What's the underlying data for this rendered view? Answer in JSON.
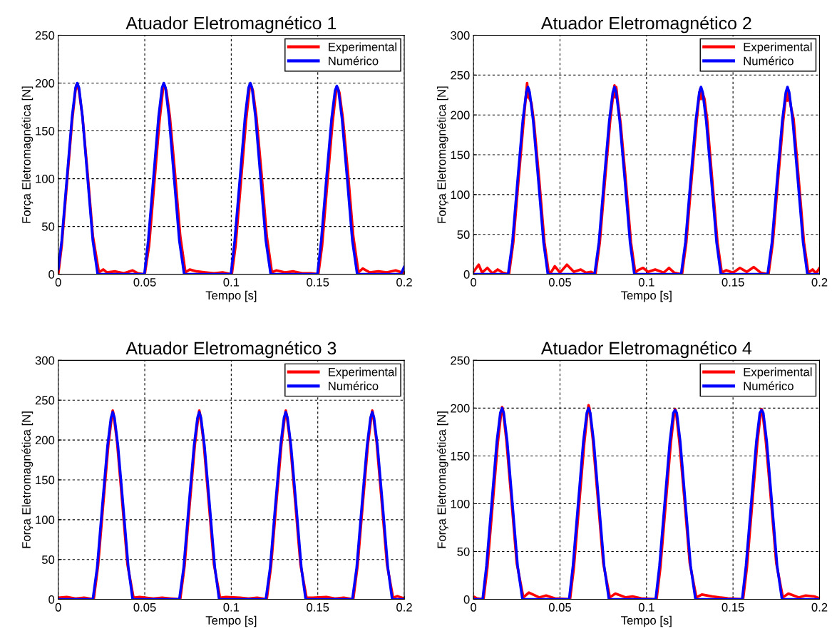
{
  "chart_data": [
    {
      "type": "line",
      "title": "Atuador Eletromagnético 1",
      "xlabel": "Tempo [s]",
      "ylabel": "Força Eletromagnética [N]",
      "xlim": [
        0,
        0.2
      ],
      "ylim": [
        0,
        250
      ],
      "xticks": [
        0,
        0.05,
        0.1,
        0.15,
        0.2
      ],
      "yticks": [
        0,
        50,
        100,
        150,
        200,
        250
      ],
      "grid": true,
      "legend": "top right",
      "line_style": "solid",
      "marker": "none",
      "series": [
        {
          "name": "Experimental",
          "color": "#ff0000",
          "x": [
            0,
            0.002,
            0.005,
            0.008,
            0.01,
            0.0105,
            0.011,
            0.012,
            0.014,
            0.017,
            0.02,
            0.0235,
            0.026,
            0.028,
            0.033,
            0.038,
            0.043,
            0.046,
            0.05,
            0.0525,
            0.0555,
            0.0585,
            0.0605,
            0.061,
            0.0615,
            0.0625,
            0.0645,
            0.0675,
            0.0705,
            0.0735,
            0.076,
            0.08,
            0.085,
            0.09,
            0.095,
            0.1003,
            0.1025,
            0.1055,
            0.1085,
            0.1105,
            0.111,
            0.1115,
            0.1125,
            0.1145,
            0.1175,
            0.1205,
            0.1235,
            0.126,
            0.131,
            0.136,
            0.141,
            0.146,
            0.1503,
            0.1525,
            0.1555,
            0.1585,
            0.1605,
            0.161,
            0.1615,
            0.1625,
            0.1645,
            0.1675,
            0.1705,
            0.1735,
            0.176,
            0.18,
            0.185,
            0.19,
            0.195,
            0.2
          ],
          "values": [
            0,
            30,
            95,
            160,
            193,
            198,
            197,
            192,
            165,
            105,
            40,
            2,
            5,
            2,
            3,
            1,
            4,
            1,
            0,
            30,
            95,
            160,
            193,
            199,
            197,
            192,
            165,
            105,
            40,
            2,
            5,
            3,
            2,
            1,
            2,
            0,
            30,
            95,
            160,
            193,
            199,
            197,
            192,
            165,
            105,
            40,
            2,
            4,
            2,
            3,
            1,
            1,
            0,
            30,
            95,
            158,
            190,
            196,
            195,
            190,
            163,
            105,
            40,
            2,
            6,
            2,
            3,
            2,
            4,
            1
          ]
        },
        {
          "name": "Numérico",
          "color": "#0000ff",
          "x": [
            0,
            0.002,
            0.005,
            0.008,
            0.01,
            0.011,
            0.012,
            0.014,
            0.017,
            0.02,
            0.0228,
            0.0498,
            0.052,
            0.055,
            0.058,
            0.06,
            0.061,
            0.062,
            0.064,
            0.067,
            0.07,
            0.0728,
            0.0998,
            0.102,
            0.105,
            0.108,
            0.11,
            0.111,
            0.112,
            0.114,
            0.117,
            0.12,
            0.1228,
            0.1498,
            0.152,
            0.155,
            0.158,
            0.16,
            0.161,
            0.162,
            0.164,
            0.167,
            0.17,
            0.1728,
            0.198,
            0.2
          ],
          "values": [
            5,
            35,
            100,
            165,
            195,
            200,
            195,
            165,
            100,
            35,
            0,
            0,
            35,
            100,
            165,
            195,
            200,
            195,
            165,
            100,
            35,
            0,
            0,
            35,
            100,
            165,
            195,
            200,
            195,
            165,
            100,
            35,
            0,
            0,
            35,
            100,
            163,
            192,
            197,
            192,
            163,
            100,
            35,
            0,
            0,
            8
          ]
        }
      ]
    },
    {
      "type": "line",
      "title": "Atuador Eletromagnético 2",
      "xlabel": "Tempo [s]",
      "ylabel": "Força Eletromagnética [N]",
      "xlim": [
        0,
        0.2
      ],
      "ylim": [
        0,
        300
      ],
      "xticks": [
        0,
        0.05,
        0.1,
        0.15,
        0.2
      ],
      "yticks": [
        0,
        50,
        100,
        150,
        200,
        250,
        300
      ],
      "grid": true,
      "legend": "top right",
      "line_style": "solid",
      "marker": "none",
      "series": [
        {
          "name": "Experimental",
          "color": "#ff0000",
          "x": [
            0,
            0.003,
            0.005,
            0.008,
            0.011,
            0.014,
            0.017,
            0.0205,
            0.023,
            0.026,
            0.029,
            0.031,
            0.0315,
            0.032,
            0.0325,
            0.0335,
            0.035,
            0.038,
            0.041,
            0.0435,
            0.045,
            0.047,
            0.05,
            0.054,
            0.058,
            0.062,
            0.065,
            0.068,
            0.0705,
            0.073,
            0.076,
            0.079,
            0.081,
            0.0815,
            0.082,
            0.0825,
            0.0835,
            0.085,
            0.088,
            0.091,
            0.0935,
            0.095,
            0.098,
            0.101,
            0.105,
            0.11,
            0.113,
            0.116,
            0.1205,
            0.123,
            0.126,
            0.129,
            0.1305,
            0.131,
            0.1315,
            0.132,
            0.1335,
            0.135,
            0.138,
            0.141,
            0.1435,
            0.146,
            0.15,
            0.154,
            0.158,
            0.162,
            0.166,
            0.1705,
            0.173,
            0.176,
            0.179,
            0.1805,
            0.181,
            0.1815,
            0.182,
            0.1835,
            0.185,
            0.188,
            0.191,
            0.1935,
            0.196,
            0.198,
            0.2
          ],
          "values": [
            3,
            12,
            2,
            8,
            1,
            6,
            2,
            0,
            40,
            118,
            193,
            240,
            222,
            232,
            220,
            215,
            190,
            118,
            40,
            2,
            3,
            10,
            2,
            12,
            3,
            6,
            2,
            3,
            0,
            40,
            118,
            193,
            230,
            237,
            222,
            235,
            215,
            190,
            118,
            40,
            2,
            5,
            8,
            3,
            6,
            2,
            8,
            2,
            0,
            40,
            118,
            193,
            225,
            232,
            220,
            230,
            220,
            195,
            118,
            40,
            2,
            5,
            2,
            8,
            3,
            9,
            2,
            0,
            40,
            118,
            193,
            222,
            230,
            218,
            228,
            210,
            195,
            118,
            40,
            2,
            6,
            1,
            8
          ]
        },
        {
          "name": "Numérico",
          "color": "#0000ff",
          "x": [
            0,
            0.02,
            0.0225,
            0.0255,
            0.0285,
            0.0305,
            0.0315,
            0.0325,
            0.0345,
            0.0375,
            0.0405,
            0.043,
            0.07,
            0.0725,
            0.0755,
            0.0785,
            0.0805,
            0.0815,
            0.0825,
            0.0845,
            0.0875,
            0.0905,
            0.093,
            0.12,
            0.1225,
            0.1255,
            0.1285,
            0.1305,
            0.1315,
            0.1325,
            0.1345,
            0.1375,
            0.1405,
            0.143,
            0.17,
            0.1725,
            0.1755,
            0.1785,
            0.1805,
            0.1815,
            0.1825,
            0.1845,
            0.1875,
            0.1905,
            0.193,
            0.2
          ],
          "values": [
            0,
            0,
            40,
            118,
            193,
            228,
            235,
            228,
            193,
            118,
            40,
            0,
            0,
            40,
            118,
            193,
            228,
            235,
            228,
            193,
            118,
            40,
            0,
            0,
            40,
            118,
            193,
            228,
            235,
            228,
            193,
            118,
            40,
            0,
            0,
            40,
            118,
            193,
            228,
            235,
            228,
            193,
            118,
            40,
            0,
            0
          ]
        }
      ]
    },
    {
      "type": "line",
      "title": "Atuador Eletromagnético 3",
      "xlabel": "Tempo [s]",
      "ylabel": "Força Eletromagnética [N]",
      "xlim": [
        0,
        0.2
      ],
      "ylim": [
        0,
        300
      ],
      "xticks": [
        0,
        0.05,
        0.1,
        0.15,
        0.2
      ],
      "yticks": [
        0,
        50,
        100,
        150,
        200,
        250,
        300
      ],
      "grid": true,
      "legend": "top right",
      "line_style": "solid",
      "marker": "none",
      "series": [
        {
          "name": "Experimental",
          "color": "#ff0000",
          "x": [
            0,
            0.005,
            0.01,
            0.015,
            0.0205,
            0.023,
            0.026,
            0.029,
            0.031,
            0.0315,
            0.032,
            0.034,
            0.037,
            0.04,
            0.0435,
            0.047,
            0.055,
            0.06,
            0.065,
            0.0705,
            0.073,
            0.076,
            0.079,
            0.081,
            0.0815,
            0.082,
            0.084,
            0.087,
            0.09,
            0.0935,
            0.097,
            0.105,
            0.11,
            0.115,
            0.1205,
            0.123,
            0.126,
            0.129,
            0.131,
            0.1315,
            0.132,
            0.134,
            0.137,
            0.14,
            0.1435,
            0.147,
            0.155,
            0.16,
            0.165,
            0.1705,
            0.173,
            0.176,
            0.179,
            0.181,
            0.1815,
            0.182,
            0.184,
            0.187,
            0.19,
            0.1935,
            0.196,
            0.2
          ],
          "values": [
            2,
            3,
            1,
            2,
            0,
            42,
            120,
            195,
            230,
            237,
            232,
            198,
            122,
            44,
            2,
            3,
            1,
            2,
            1,
            0,
            42,
            120,
            195,
            230,
            237,
            232,
            198,
            122,
            44,
            2,
            3,
            2,
            1,
            2,
            0,
            42,
            120,
            195,
            230,
            237,
            232,
            198,
            122,
            44,
            2,
            2,
            3,
            1,
            2,
            0,
            42,
            120,
            195,
            230,
            237,
            232,
            198,
            122,
            44,
            2,
            4,
            1
          ]
        },
        {
          "name": "Numérico",
          "color": "#0000ff",
          "x": [
            0,
            0.02,
            0.0225,
            0.0255,
            0.0285,
            0.0305,
            0.0315,
            0.0325,
            0.0345,
            0.0375,
            0.0405,
            0.043,
            0.07,
            0.0725,
            0.0755,
            0.0785,
            0.0805,
            0.0815,
            0.0825,
            0.0845,
            0.0875,
            0.0905,
            0.093,
            0.12,
            0.1225,
            0.1255,
            0.1285,
            0.1305,
            0.1315,
            0.1325,
            0.1345,
            0.1375,
            0.1405,
            0.143,
            0.17,
            0.1725,
            0.1755,
            0.1785,
            0.1805,
            0.1815,
            0.1825,
            0.1845,
            0.1875,
            0.1905,
            0.193,
            0.2
          ],
          "values": [
            0,
            0,
            40,
            118,
            193,
            228,
            235,
            228,
            193,
            118,
            40,
            0,
            0,
            40,
            118,
            193,
            228,
            235,
            228,
            193,
            118,
            40,
            0,
            0,
            40,
            118,
            193,
            228,
            235,
            228,
            193,
            118,
            40,
            0,
            0,
            40,
            118,
            193,
            228,
            235,
            228,
            193,
            118,
            40,
            0,
            0
          ]
        }
      ]
    },
    {
      "type": "line",
      "title": "Atuador Eletromagnético 4",
      "xlabel": "Tempo [s]",
      "ylabel": "Força Eletromagnética [N]",
      "xlim": [
        0,
        0.2
      ],
      "ylim": [
        0,
        250
      ],
      "xticks": [
        0,
        0.05,
        0.1,
        0.15,
        0.2
      ],
      "yticks": [
        0,
        50,
        100,
        150,
        200,
        250
      ],
      "grid": true,
      "legend": "top right",
      "line_style": "solid",
      "marker": "none",
      "series": [
        {
          "name": "Experimental",
          "color": "#ff0000",
          "x": [
            0,
            0.002,
            0.0058,
            0.008,
            0.011,
            0.014,
            0.016,
            0.0165,
            0.017,
            0.019,
            0.022,
            0.025,
            0.0288,
            0.032,
            0.038,
            0.042,
            0.047,
            0.0558,
            0.058,
            0.061,
            0.064,
            0.066,
            0.0665,
            0.067,
            0.069,
            0.072,
            0.075,
            0.0788,
            0.082,
            0.088,
            0.092,
            0.097,
            0.1058,
            0.108,
            0.111,
            0.114,
            0.116,
            0.1165,
            0.117,
            0.119,
            0.122,
            0.125,
            0.1288,
            0.132,
            0.138,
            0.142,
            0.147,
            0.1558,
            0.158,
            0.161,
            0.164,
            0.166,
            0.1665,
            0.167,
            0.169,
            0.172,
            0.175,
            0.1788,
            0.182,
            0.188,
            0.192,
            0.197,
            0.2
          ],
          "values": [
            3,
            1,
            0,
            33,
            98,
            163,
            195,
            201,
            199,
            167,
            103,
            38,
            2,
            7,
            2,
            4,
            1,
            0,
            33,
            98,
            163,
            197,
            203,
            200,
            167,
            103,
            38,
            2,
            6,
            2,
            3,
            1,
            0,
            33,
            98,
            163,
            195,
            199,
            197,
            165,
            103,
            38,
            2,
            5,
            3,
            2,
            1,
            0,
            33,
            98,
            163,
            195,
            199,
            197,
            165,
            103,
            38,
            2,
            6,
            2,
            4,
            3,
            1
          ]
        },
        {
          "name": "Numérico",
          "color": "#0000ff",
          "x": [
            0,
            0.0053,
            0.0075,
            0.0105,
            0.0135,
            0.0155,
            0.0165,
            0.0175,
            0.0195,
            0.0225,
            0.0255,
            0.0283,
            0.0553,
            0.0575,
            0.0605,
            0.0635,
            0.0655,
            0.0665,
            0.0675,
            0.0695,
            0.0725,
            0.0755,
            0.0783,
            0.1053,
            0.1075,
            0.1105,
            0.1135,
            0.1155,
            0.1165,
            0.1175,
            0.1195,
            0.1225,
            0.1255,
            0.1283,
            0.1553,
            0.1575,
            0.1605,
            0.1635,
            0.1655,
            0.1665,
            0.1675,
            0.1695,
            0.1725,
            0.1755,
            0.1783,
            0.2
          ],
          "values": [
            0,
            0,
            35,
            100,
            165,
            195,
            200,
            195,
            165,
            100,
            35,
            0,
            0,
            35,
            100,
            165,
            195,
            200,
            195,
            165,
            100,
            35,
            0,
            0,
            35,
            100,
            165,
            195,
            198,
            195,
            165,
            100,
            35,
            0,
            0,
            35,
            100,
            165,
            195,
            198,
            195,
            165,
            100,
            35,
            0,
            0
          ]
        }
      ]
    }
  ]
}
